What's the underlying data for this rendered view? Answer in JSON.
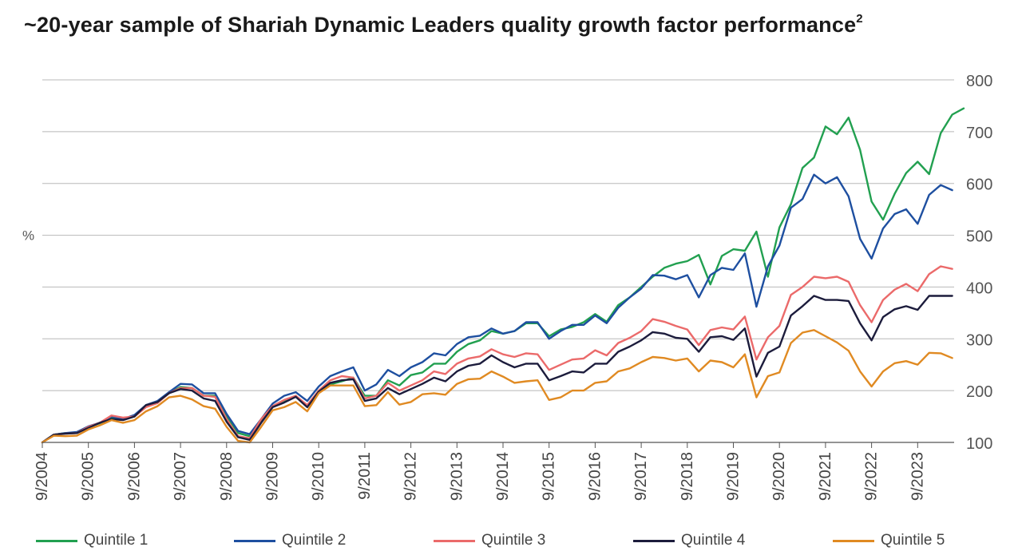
{
  "title": "~20-year sample of Shariah Dynamic Leaders quality growth factor performance",
  "title_superscript": "2",
  "chart_data": {
    "type": "line",
    "title": "~20-year sample of Shariah Dynamic Leaders quality growth factor performance",
    "xlabel": "",
    "ylabel": "%",
    "ylim": [
      100,
      800
    ],
    "yticks": [
      100,
      200,
      300,
      400,
      500,
      600,
      700,
      800
    ],
    "grid": true,
    "legend_position": "bottom",
    "x_start": 2004.75,
    "x_step": 0.25,
    "xticks": [
      {
        "x": 2004.75,
        "label": "9/2004"
      },
      {
        "x": 2005.75,
        "label": "9/2005"
      },
      {
        "x": 2006.75,
        "label": "9/2006"
      },
      {
        "x": 2007.75,
        "label": "9/2007"
      },
      {
        "x": 2008.75,
        "label": "9/2008"
      },
      {
        "x": 2009.75,
        "label": "9/2009"
      },
      {
        "x": 2010.75,
        "label": "9/2010"
      },
      {
        "x": 2011.75,
        "label": "9/2011"
      },
      {
        "x": 2012.75,
        "label": "9/2012"
      },
      {
        "x": 2013.75,
        "label": "9/2013"
      },
      {
        "x": 2014.75,
        "label": "9/2014"
      },
      {
        "x": 2015.75,
        "label": "9/2015"
      },
      {
        "x": 2016.75,
        "label": "9/2016"
      },
      {
        "x": 2017.75,
        "label": "9/2017"
      },
      {
        "x": 2018.75,
        "label": "9/2018"
      },
      {
        "x": 2019.75,
        "label": "9/2019"
      },
      {
        "x": 2020.75,
        "label": "9/2020"
      },
      {
        "x": 2021.75,
        "label": "9/2021"
      },
      {
        "x": 2022.75,
        "label": "9/2022"
      },
      {
        "x": 2023.75,
        "label": "9/2023"
      }
    ],
    "series": [
      {
        "name": "Quintile 1",
        "color": "#22a050",
        "values": [
          100,
          115,
          118,
          118,
          130,
          137,
          148,
          145,
          152,
          170,
          178,
          195,
          207,
          205,
          190,
          190,
          150,
          118,
          112,
          140,
          170,
          180,
          190,
          170,
          200,
          212,
          218,
          225,
          190,
          190,
          220,
          210,
          230,
          235,
          252,
          252,
          275,
          290,
          297,
          315,
          310,
          315,
          330,
          330,
          305,
          318,
          323,
          332,
          348,
          333,
          365,
          380,
          400,
          420,
          437,
          445,
          450,
          462,
          405,
          460,
          473,
          470,
          507,
          420,
          515,
          560,
          630,
          650,
          710,
          695,
          727,
          665,
          565,
          530,
          580,
          620,
          642,
          618,
          697,
          733,
          745
        ]
      },
      {
        "name": "Quintile 2",
        "color": "#1e4fa0",
        "values": [
          100,
          115,
          118,
          120,
          131,
          138,
          150,
          145,
          153,
          172,
          180,
          197,
          213,
          212,
          195,
          195,
          155,
          122,
          116,
          145,
          175,
          190,
          197,
          180,
          208,
          228,
          237,
          245,
          200,
          212,
          240,
          228,
          245,
          255,
          272,
          268,
          290,
          303,
          306,
          320,
          310,
          315,
          332,
          332,
          300,
          315,
          327,
          327,
          345,
          330,
          360,
          380,
          397,
          423,
          422,
          415,
          423,
          380,
          423,
          437,
          433,
          465,
          362,
          440,
          480,
          553,
          570,
          617,
          600,
          612,
          575,
          493,
          455,
          513,
          541,
          550,
          522,
          578,
          597,
          587
        ]
      },
      {
        "name": "Quintile 3",
        "color": "#eb6a6a",
        "values": [
          100,
          115,
          117,
          118,
          130,
          138,
          152,
          148,
          150,
          168,
          176,
          195,
          205,
          205,
          190,
          188,
          145,
          112,
          108,
          145,
          170,
          182,
          190,
          172,
          200,
          220,
          228,
          225,
          185,
          190,
          215,
          200,
          210,
          220,
          237,
          232,
          252,
          262,
          266,
          280,
          270,
          265,
          272,
          270,
          240,
          250,
          260,
          262,
          278,
          268,
          292,
          302,
          315,
          338,
          333,
          325,
          318,
          288,
          317,
          322,
          318,
          343,
          260,
          303,
          325,
          385,
          400,
          420,
          417,
          420,
          410,
          365,
          332,
          375,
          395,
          406,
          392,
          425,
          440,
          435
        ]
      },
      {
        "name": "Quintile 4",
        "color": "#1c1c3c",
        "values": [
          100,
          115,
          117,
          118,
          128,
          138,
          145,
          143,
          150,
          172,
          178,
          195,
          203,
          200,
          185,
          180,
          140,
          110,
          105,
          138,
          168,
          177,
          188,
          168,
          198,
          215,
          220,
          222,
          180,
          185,
          205,
          193,
          203,
          213,
          225,
          218,
          237,
          248,
          252,
          268,
          255,
          245,
          252,
          252,
          220,
          228,
          237,
          235,
          252,
          252,
          275,
          285,
          297,
          313,
          310,
          302,
          300,
          275,
          303,
          305,
          298,
          320,
          227,
          273,
          285,
          345,
          363,
          383,
          375,
          375,
          373,
          330,
          297,
          342,
          357,
          363,
          356,
          383,
          383,
          383
        ]
      },
      {
        "name": "Quintile 5",
        "color": "#e08a22",
        "values": [
          100,
          113,
          112,
          113,
          125,
          133,
          143,
          138,
          143,
          160,
          170,
          187,
          190,
          183,
          170,
          165,
          130,
          103,
          100,
          130,
          162,
          168,
          178,
          160,
          195,
          210,
          210,
          210,
          170,
          172,
          197,
          173,
          178,
          193,
          195,
          192,
          213,
          222,
          223,
          237,
          227,
          215,
          218,
          220,
          182,
          187,
          200,
          200,
          215,
          218,
          237,
          243,
          255,
          265,
          263,
          258,
          262,
          237,
          258,
          255,
          245,
          270,
          187,
          228,
          235,
          292,
          312,
          317,
          305,
          293,
          277,
          237,
          208,
          237,
          253,
          257,
          250,
          273,
          272,
          263
        ]
      }
    ]
  }
}
